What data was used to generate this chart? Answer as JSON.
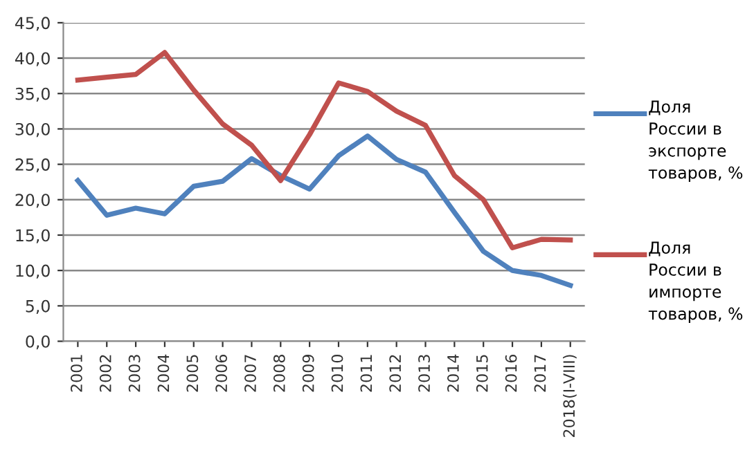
{
  "chart_data": {
    "type": "line",
    "categories": [
      "2001",
      "2002",
      "2003",
      "2004",
      "2005",
      "2006",
      "2007",
      "2008",
      "2009",
      "2010",
      "2011",
      "2012",
      "2013",
      "2014",
      "2015",
      "2016",
      "2017",
      "2018(I-VIII)"
    ],
    "series": [
      {
        "name": "Доля России в экспорте товаров, %",
        "color": "#4f81bd",
        "values": [
          22.7,
          17.8,
          18.8,
          18.0,
          21.9,
          22.6,
          25.8,
          23.4,
          21.5,
          26.2,
          29.0,
          25.7,
          23.9,
          18.2,
          12.7,
          10.0,
          9.3,
          7.9
        ]
      },
      {
        "name": "Доля России в импорте товаров, %",
        "color": "#c0504d",
        "values": [
          36.9,
          37.3,
          37.7,
          40.8,
          35.5,
          30.7,
          27.7,
          22.7,
          29.2,
          36.5,
          35.3,
          32.5,
          30.5,
          23.4,
          20.0,
          13.2,
          14.4,
          14.3
        ]
      }
    ],
    "ylim": [
      0,
      45
    ],
    "yticks": [
      {
        "value": 0,
        "label": "0,0"
      },
      {
        "value": 5,
        "label": "5,0"
      },
      {
        "value": 10,
        "label": "10,0"
      },
      {
        "value": 15,
        "label": "15,0"
      },
      {
        "value": 20,
        "label": "20,0"
      },
      {
        "value": 25,
        "label": "25,0"
      },
      {
        "value": 30,
        "label": "30,0"
      },
      {
        "value": 35,
        "label": "35,0"
      },
      {
        "value": 40,
        "label": "40,0"
      },
      {
        "value": 45,
        "label": "45,0"
      }
    ],
    "grid": "y",
    "legend": "right",
    "marker": "none",
    "line_style": "solid"
  }
}
